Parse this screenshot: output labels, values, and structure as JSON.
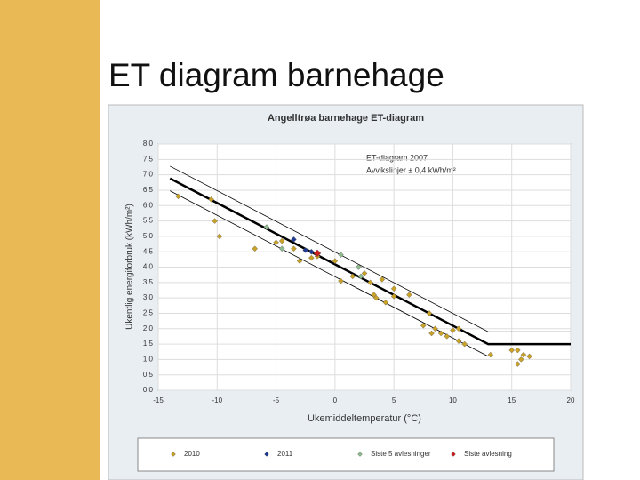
{
  "slide": {
    "title": "ET diagram barnehage"
  },
  "chart_data": {
    "type": "scatter",
    "title": "Angelltrøa barnehage ET-diagram",
    "x_label": "Ukemiddeltemperatur (°C)",
    "y_label": "Ukentlig energiforbruk (kWh/m²)",
    "annotations": [
      "ET-diagram 2007",
      "Avvikslinjer ± 0,4 kWh/m²"
    ],
    "xlim": [
      -15,
      20
    ],
    "xticks": [
      -15,
      -10,
      -5,
      0,
      5,
      10,
      15,
      20
    ],
    "ylim": [
      0,
      8
    ],
    "yticks": [
      {
        "value": 0,
        "label": "0,0"
      },
      {
        "value": 0.5,
        "label": "0,5"
      },
      {
        "value": 1,
        "label": "1,0"
      },
      {
        "value": 1.5,
        "label": "1,5"
      },
      {
        "value": 2,
        "label": "2,0"
      },
      {
        "value": 2.5,
        "label": "2,5"
      },
      {
        "value": 3,
        "label": "3,0"
      },
      {
        "value": 3.5,
        "label": "3,5"
      },
      {
        "value": 4,
        "label": "4,0"
      },
      {
        "value": 4.5,
        "label": "4,5"
      },
      {
        "value": 5,
        "label": "5,0"
      },
      {
        "value": 5.5,
        "label": "5,5"
      },
      {
        "value": 6,
        "label": "6,0"
      },
      {
        "value": 6.5,
        "label": "6,5"
      },
      {
        "value": 7,
        "label": "7,0"
      },
      {
        "value": 7.5,
        "label": "7,5"
      },
      {
        "value": 8,
        "label": "8,0"
      }
    ],
    "grid": true,
    "lines": [
      {
        "color": "#000000",
        "width": 2.5,
        "x": [
          -14,
          13,
          20
        ],
        "values": [
          6.88,
          1.5,
          1.5
        ]
      },
      {
        "color": "#000000",
        "width": 0.8,
        "x": [
          -14,
          13,
          20
        ],
        "values": [
          7.28,
          1.9,
          1.9
        ]
      },
      {
        "color": "#000000",
        "width": 0.8,
        "x": [
          -14,
          13
        ],
        "values": [
          6.48,
          1.1
        ]
      }
    ],
    "series": [
      {
        "name": "2010",
        "color": "#c9a227",
        "x": [
          -13.3,
          -10.5,
          -10.2,
          -9.8,
          -6.8,
          -5,
          -4.5,
          -3.5,
          -3,
          -2,
          -1.5,
          0,
          0.5,
          1.5,
          2,
          2.5,
          3,
          3.3,
          3.5,
          4,
          4.3,
          5,
          5,
          6.3,
          7.5,
          8,
          8.2,
          8.5,
          9,
          9.5,
          10,
          10.5,
          10.5,
          11,
          13.2,
          15,
          15.5,
          15.5,
          15.8,
          16,
          16.5
        ],
        "values": [
          6.3,
          6.2,
          5.5,
          5.0,
          4.6,
          4.8,
          4.85,
          4.6,
          4.2,
          4.3,
          4.35,
          4.2,
          3.55,
          3.7,
          4.0,
          3.8,
          3.5,
          3.1,
          3.0,
          3.6,
          2.85,
          3.05,
          3.3,
          3.1,
          2.1,
          2.5,
          1.85,
          2.0,
          1.85,
          1.75,
          1.95,
          2.0,
          1.6,
          1.5,
          1.15,
          1.3,
          1.3,
          0.85,
          1.0,
          1.15,
          1.1
        ]
      },
      {
        "name": "2011",
        "color": "#1f3a93",
        "x": [
          -3.5,
          -2.5,
          -2
        ],
        "values": [
          4.9,
          4.55,
          4.5
        ]
      },
      {
        "name": "Siste 5 avlesninger",
        "color": "#8fbc8f",
        "x": [
          -5.8,
          -4.5,
          0.5,
          2,
          2.2
        ],
        "values": [
          5.3,
          4.6,
          4.4,
          4.0,
          3.7
        ]
      },
      {
        "name": "Siste avlesning",
        "color": "#cc1f1f",
        "x": [
          -1.5
        ],
        "values": [
          4.45
        ]
      }
    ]
  }
}
